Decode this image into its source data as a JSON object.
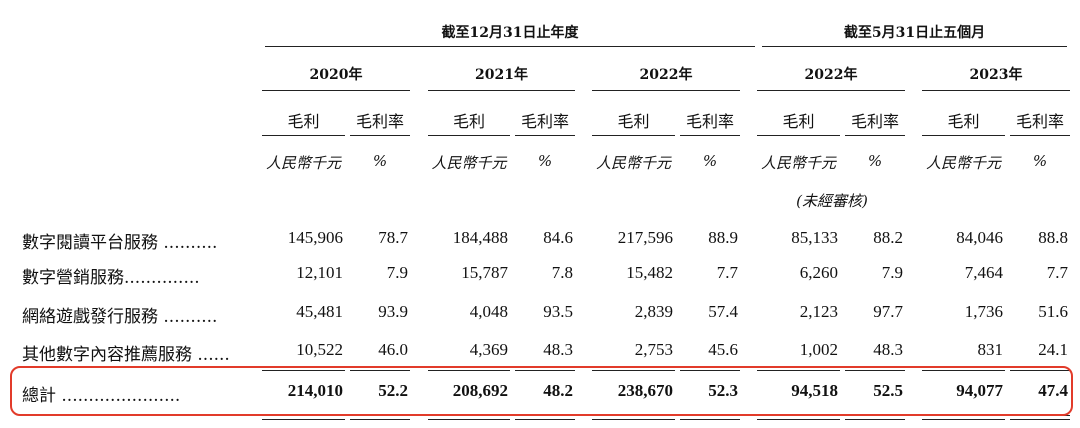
{
  "group_headers": [
    "截至12月31日止年度",
    "截至5月31日止五個月"
  ],
  "years": [
    "2020年",
    "2021年",
    "2022年",
    "2022年",
    "2023年"
  ],
  "col_gross_profit": "毛利",
  "col_margin": "毛利率",
  "unit_rmb": "人民幣千元",
  "unit_pct": "%",
  "unaudited_note": "(未經審核)",
  "rows": [
    {
      "label": "數字閱讀平台服務",
      "dots": "..........",
      "values": [
        "145,906",
        "78.7",
        "184,488",
        "84.6",
        "217,596",
        "88.9",
        "85,133",
        "88.2",
        "84,046",
        "88.8"
      ]
    },
    {
      "label": "數字營銷服務",
      "dots": "..............",
      "values": [
        "12,101",
        "7.9",
        "15,787",
        "7.8",
        "15,482",
        "7.7",
        "6,260",
        "7.9",
        "7,464",
        "7.7"
      ]
    },
    {
      "label": "網絡遊戲發行服務",
      "dots": "..........",
      "values": [
        "45,481",
        "93.9",
        "4,048",
        "93.5",
        "2,839",
        "57.4",
        "2,123",
        "97.7",
        "1,736",
        "51.6"
      ]
    },
    {
      "label": "其他數字內容推薦服務",
      "dots": "......",
      "values": [
        "10,522",
        "46.0",
        "4,369",
        "48.3",
        "2,753",
        "45.6",
        "1,002",
        "48.3",
        "831",
        "24.1"
      ]
    }
  ],
  "total": {
    "label": "總計",
    "dots": "......................",
    "values": [
      "214,010",
      "52.2",
      "208,692",
      "48.2",
      "238,670",
      "52.3",
      "94,518",
      "52.5",
      "94,077",
      "47.4"
    ]
  },
  "highlight_color": "#e23b2a"
}
